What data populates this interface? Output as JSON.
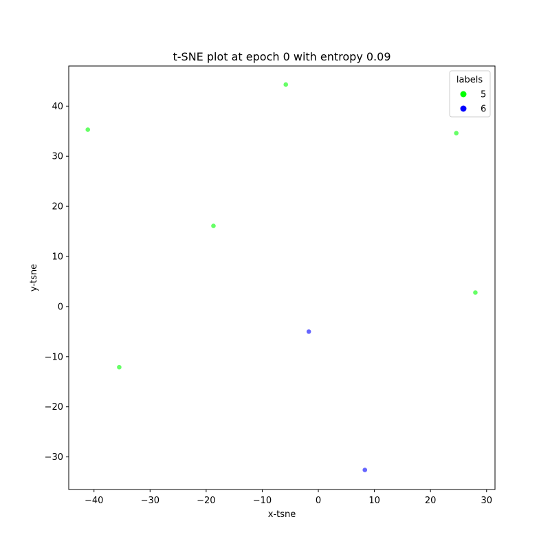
{
  "chart_data": {
    "type": "scatter",
    "title": "t-SNE plot at epoch 0 with entropy 0.09",
    "xlabel": "x-tsne",
    "ylabel": "y-tsne",
    "xlim": [
      -44.5,
      31.5
    ],
    "ylim": [
      -36.5,
      48
    ],
    "xticks": [
      -40,
      -30,
      -20,
      -10,
      0,
      10,
      20,
      30
    ],
    "yticks": [
      -30,
      -20,
      -10,
      0,
      10,
      20,
      30,
      40
    ],
    "xtick_labels": [
      "−40",
      "−30",
      "−20",
      "−10",
      "0",
      "10",
      "20",
      "30"
    ],
    "ytick_labels": [
      "−30",
      "−20",
      "−10",
      "0",
      "10",
      "20",
      "30",
      "40"
    ],
    "grid": false,
    "legend": {
      "title": "labels",
      "placement": "top-right"
    },
    "series": [
      {
        "name": "5",
        "color": "#00ff00",
        "points": [
          {
            "x": -41.1,
            "y": 35.3
          },
          {
            "x": -5.8,
            "y": 44.3
          },
          {
            "x": 24.6,
            "y": 34.6
          },
          {
            "x": -18.7,
            "y": 16.1
          },
          {
            "x": 28.0,
            "y": 2.8
          },
          {
            "x": -35.5,
            "y": -12.1
          }
        ]
      },
      {
        "name": "6",
        "color": "#0000ff",
        "points": [
          {
            "x": -1.7,
            "y": -5.0
          },
          {
            "x": 8.3,
            "y": -32.6
          }
        ]
      }
    ]
  }
}
